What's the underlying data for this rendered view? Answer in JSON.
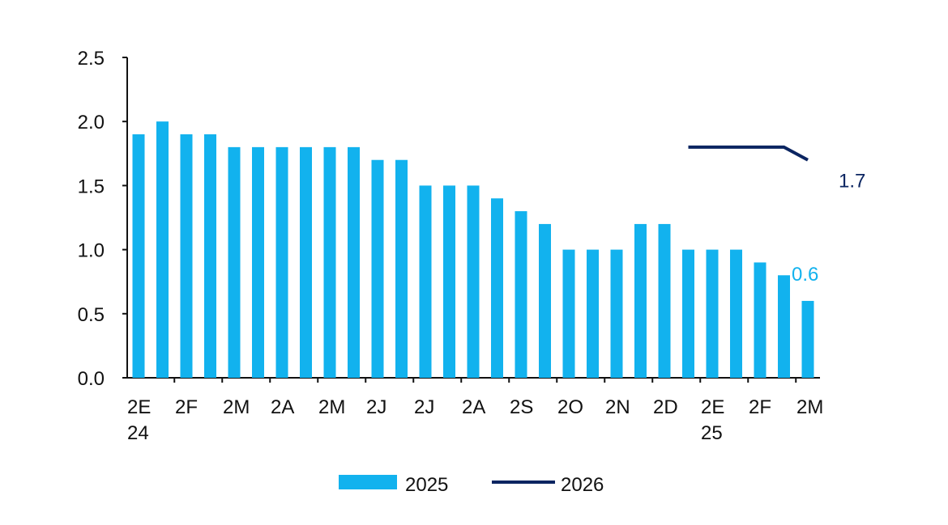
{
  "chart_data": {
    "type": "bar",
    "categories": [
      "2E\n24",
      null,
      "2F",
      null,
      "2M",
      null,
      "2A",
      null,
      "2M",
      null,
      "2J",
      null,
      "2J",
      null,
      "2A",
      null,
      "2S",
      null,
      "2O",
      null,
      "2N",
      null,
      "2D",
      null,
      "2E\n25",
      null,
      "2F",
      null,
      "2M"
    ],
    "series": [
      {
        "name": "2025",
        "type": "bar",
        "color": "#12b2ee",
        "values": [
          1.9,
          2.0,
          1.9,
          1.9,
          1.8,
          1.8,
          1.8,
          1.8,
          1.8,
          1.8,
          1.7,
          1.7,
          1.5,
          1.5,
          1.5,
          1.4,
          1.3,
          1.2,
          1.0,
          1.0,
          1.0,
          1.2,
          1.2,
          1.0,
          1.0,
          1.0,
          0.9,
          0.8,
          0.6
        ],
        "value_labels": [
          null,
          null,
          null,
          null,
          null,
          null,
          null,
          null,
          null,
          null,
          null,
          null,
          null,
          null,
          null,
          null,
          null,
          null,
          null,
          null,
          null,
          null,
          null,
          null,
          null,
          null,
          null,
          null,
          "0.6"
        ]
      },
      {
        "name": "2026",
        "type": "line",
        "color": "#0b2561",
        "values": [
          null,
          null,
          null,
          null,
          null,
          null,
          null,
          null,
          null,
          null,
          null,
          null,
          null,
          null,
          null,
          null,
          null,
          null,
          null,
          null,
          null,
          null,
          null,
          1.8,
          1.8,
          1.8,
          1.8,
          1.8,
          1.7
        ],
        "value_labels": [
          null,
          null,
          null,
          null,
          null,
          null,
          null,
          null,
          null,
          null,
          null,
          null,
          null,
          null,
          null,
          null,
          null,
          null,
          null,
          null,
          null,
          null,
          null,
          null,
          null,
          null,
          null,
          null,
          "1.7"
        ]
      }
    ],
    "ylim": [
      0,
      2.5
    ],
    "yticks": [
      {
        "value": 0,
        "label": "0.0"
      },
      {
        "value": 0.5,
        "label": "0.5"
      },
      {
        "value": 1,
        "label": "1.0"
      },
      {
        "value": 1.5,
        "label": "1.5"
      },
      {
        "value": 2,
        "label": "2.0"
      },
      {
        "value": 2.5,
        "label": "2.5"
      }
    ],
    "grid": false,
    "legend": "bottom"
  }
}
